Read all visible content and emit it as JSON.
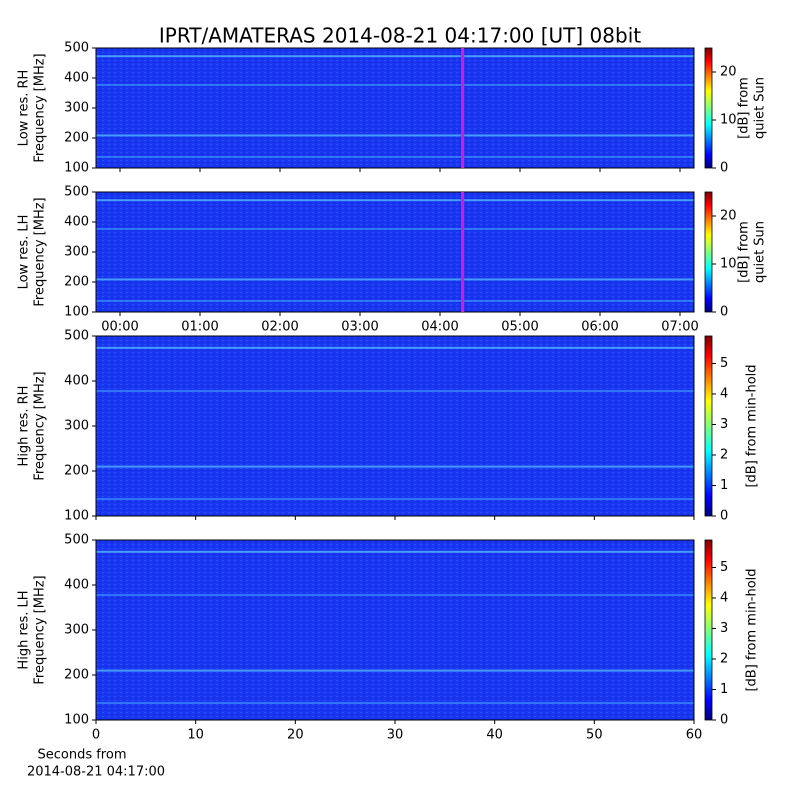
{
  "title": "IPRT/AMATERAS 2014-08-21 04:17:00 [UT]   08bit",
  "xlabel": [
    "Seconds from",
    "2014-08-21 04:17:00"
  ],
  "chart_data": [
    {
      "type": "heatmap",
      "ylabel": [
        "Low res. RH",
        "Frequency [MHz]"
      ],
      "ylim": [
        100,
        500
      ],
      "yticks": [
        100,
        200,
        300,
        400,
        500
      ],
      "xlim": [
        -0.3,
        7.175
      ],
      "xticks": [
        0,
        1,
        2,
        3,
        4,
        5,
        6,
        7
      ],
      "marker_x": 4.283,
      "colorbar": {
        "lim": [
          0,
          25
        ],
        "ticks": [
          0,
          10,
          20
        ],
        "label": [
          "[dB] from",
          "quiet Sun"
        ]
      }
    },
    {
      "type": "heatmap",
      "ylabel": [
        "Low res. LH",
        "Frequency [MHz]"
      ],
      "ylim": [
        100,
        500
      ],
      "yticks": [
        100,
        200,
        300,
        400,
        500
      ],
      "xlim": [
        -0.3,
        7.175
      ],
      "xticks": [
        {
          "value": 0,
          "label": "00:00"
        },
        {
          "value": 1,
          "label": "01:00"
        },
        {
          "value": 2,
          "label": "02:00"
        },
        {
          "value": 3,
          "label": "03:00"
        },
        {
          "value": 4,
          "label": "04:00"
        },
        {
          "value": 5,
          "label": "05:00"
        },
        {
          "value": 6,
          "label": "06:00"
        },
        {
          "value": 7,
          "label": "07:00"
        }
      ],
      "marker_x": 4.283,
      "colorbar": {
        "lim": [
          0,
          25
        ],
        "ticks": [
          0,
          10,
          20
        ],
        "label": [
          "[dB] from",
          "quiet Sun"
        ]
      }
    },
    {
      "type": "heatmap",
      "ylabel": [
        "High res. RH",
        "Frequency [MHz]"
      ],
      "ylim": [
        100,
        500
      ],
      "yticks": [
        100,
        200,
        300,
        400,
        500
      ],
      "xlim": [
        0,
        60
      ],
      "xticks": [
        0,
        10,
        20,
        30,
        40,
        50,
        60
      ],
      "colorbar": {
        "lim": [
          0,
          5.9
        ],
        "ticks": [
          0,
          1,
          2,
          3,
          4,
          5
        ],
        "label": [
          "[dB] from min-hold"
        ]
      }
    },
    {
      "type": "heatmap",
      "ylabel": [
        "High res. LH",
        "Frequency [MHz]"
      ],
      "ylim": [
        100,
        500
      ],
      "yticks": [
        100,
        200,
        300,
        400,
        500
      ],
      "xlim": [
        0,
        60
      ],
      "xticks": [
        {
          "value": 0,
          "label": "0"
        },
        {
          "value": 10,
          "label": "10"
        },
        {
          "value": 20,
          "label": "20"
        },
        {
          "value": 30,
          "label": "30"
        },
        {
          "value": 40,
          "label": "40"
        },
        {
          "value": 50,
          "label": "50"
        },
        {
          "value": 60,
          "label": "60"
        }
      ],
      "colorbar": {
        "lim": [
          0,
          5.9
        ],
        "ticks": [
          0,
          1,
          2,
          3,
          4,
          5
        ],
        "label": [
          "[dB] from min-hold"
        ]
      }
    }
  ]
}
